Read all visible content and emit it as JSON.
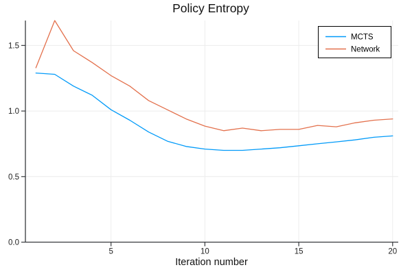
{
  "chart_data": {
    "type": "line",
    "title": "Policy Entropy",
    "xlabel": "Iteration number",
    "ylabel": "",
    "x": [
      1,
      2,
      3,
      4,
      5,
      6,
      7,
      8,
      9,
      10,
      11,
      12,
      13,
      14,
      15,
      16,
      17,
      18,
      19,
      20
    ],
    "series": [
      {
        "name": "MCTS",
        "color": "#009AF9",
        "values": [
          1.29,
          1.28,
          1.19,
          1.12,
          1.01,
          0.93,
          0.84,
          0.77,
          0.73,
          0.71,
          0.7,
          0.7,
          0.71,
          0.72,
          0.735,
          0.75,
          0.765,
          0.78,
          0.8,
          0.81
        ]
      },
      {
        "name": "Network",
        "color": "#E3704C",
        "values": [
          1.33,
          1.69,
          1.46,
          1.37,
          1.27,
          1.19,
          1.08,
          1.01,
          0.94,
          0.885,
          0.85,
          0.87,
          0.85,
          0.86,
          0.86,
          0.89,
          0.88,
          0.91,
          0.93,
          0.94
        ]
      }
    ],
    "xlim": [
      0.44,
      20.3
    ],
    "ylim": [
      0.0,
      1.69
    ],
    "xticks": {
      "values": [
        5,
        10,
        15,
        20
      ],
      "labels": [
        "5",
        "10",
        "15",
        "20"
      ]
    },
    "yticks": {
      "values": [
        0.0,
        0.5,
        1.0,
        1.5
      ],
      "labels": [
        "0.0",
        "0.5",
        "1.0",
        "1.5"
      ]
    },
    "grid": true,
    "legend_position": "top-right",
    "colors": {
      "axis": "#36383c",
      "grid": "#ececec",
      "tick_text": "#1f1f1f",
      "title_text": "#111111",
      "legend_border": "#000000",
      "legend_bg": "#ffffff"
    }
  }
}
